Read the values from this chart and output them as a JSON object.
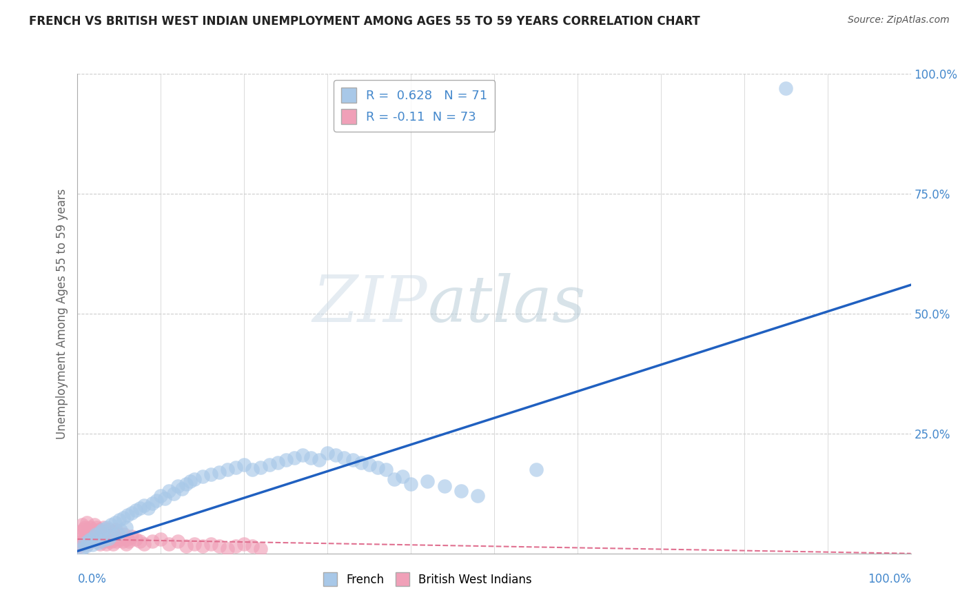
{
  "title": "FRENCH VS BRITISH WEST INDIAN UNEMPLOYMENT AMONG AGES 55 TO 59 YEARS CORRELATION CHART",
  "source": "Source: ZipAtlas.com",
  "ylabel": "Unemployment Among Ages 55 to 59 years",
  "xlim": [
    0,
    1.0
  ],
  "ylim": [
    0,
    1.0
  ],
  "yticks": [
    0.0,
    0.25,
    0.5,
    0.75,
    1.0
  ],
  "ytick_labels": [
    "",
    "25.0%",
    "50.0%",
    "75.0%",
    "100.0%"
  ],
  "french_R": 0.628,
  "french_N": 71,
  "british_R": -0.11,
  "british_N": 73,
  "french_color": "#a8c8e8",
  "british_color": "#f0a0b8",
  "french_line_color": "#2060c0",
  "british_line_color": "#e07090",
  "tick_color": "#4488cc",
  "grid_color": "#cccccc",
  "french_line_slope": 0.555,
  "french_line_intercept": 0.005,
  "british_line_slope": -0.03,
  "british_line_intercept": 0.03,
  "french_points_x": [
    0.005,
    0.008,
    0.01,
    0.012,
    0.015,
    0.018,
    0.02,
    0.022,
    0.025,
    0.028,
    0.03,
    0.032,
    0.035,
    0.038,
    0.04,
    0.042,
    0.045,
    0.048,
    0.05,
    0.052,
    0.055,
    0.058,
    0.06,
    0.065,
    0.07,
    0.075,
    0.08,
    0.085,
    0.09,
    0.095,
    0.1,
    0.105,
    0.11,
    0.115,
    0.12,
    0.125,
    0.13,
    0.135,
    0.14,
    0.15,
    0.16,
    0.17,
    0.18,
    0.19,
    0.2,
    0.21,
    0.22,
    0.23,
    0.24,
    0.25,
    0.26,
    0.27,
    0.28,
    0.29,
    0.3,
    0.31,
    0.32,
    0.33,
    0.34,
    0.35,
    0.36,
    0.37,
    0.38,
    0.39,
    0.4,
    0.42,
    0.44,
    0.46,
    0.48,
    0.55,
    0.85
  ],
  "french_points_y": [
    0.01,
    0.02,
    0.015,
    0.025,
    0.03,
    0.018,
    0.035,
    0.04,
    0.022,
    0.045,
    0.05,
    0.028,
    0.055,
    0.032,
    0.06,
    0.038,
    0.065,
    0.042,
    0.07,
    0.048,
    0.075,
    0.055,
    0.08,
    0.085,
    0.09,
    0.095,
    0.1,
    0.095,
    0.105,
    0.11,
    0.12,
    0.115,
    0.13,
    0.125,
    0.14,
    0.135,
    0.145,
    0.15,
    0.155,
    0.16,
    0.165,
    0.17,
    0.175,
    0.18,
    0.185,
    0.175,
    0.18,
    0.185,
    0.19,
    0.195,
    0.2,
    0.205,
    0.2,
    0.195,
    0.21,
    0.205,
    0.2,
    0.195,
    0.19,
    0.185,
    0.18,
    0.175,
    0.155,
    0.16,
    0.145,
    0.15,
    0.14,
    0.13,
    0.12,
    0.175,
    0.97
  ],
  "british_points_x": [
    0.001,
    0.002,
    0.003,
    0.004,
    0.005,
    0.006,
    0.007,
    0.008,
    0.009,
    0.01,
    0.011,
    0.012,
    0.013,
    0.014,
    0.015,
    0.016,
    0.017,
    0.018,
    0.019,
    0.02,
    0.021,
    0.022,
    0.023,
    0.024,
    0.025,
    0.026,
    0.027,
    0.028,
    0.029,
    0.03,
    0.031,
    0.032,
    0.033,
    0.034,
    0.035,
    0.036,
    0.037,
    0.038,
    0.039,
    0.04,
    0.041,
    0.042,
    0.043,
    0.044,
    0.045,
    0.046,
    0.047,
    0.048,
    0.05,
    0.052,
    0.054,
    0.056,
    0.058,
    0.06,
    0.062,
    0.065,
    0.07,
    0.075,
    0.08,
    0.09,
    0.1,
    0.11,
    0.12,
    0.13,
    0.14,
    0.15,
    0.16,
    0.17,
    0.18,
    0.19,
    0.2,
    0.21,
    0.22
  ],
  "british_points_y": [
    0.02,
    0.035,
    0.015,
    0.045,
    0.06,
    0.025,
    0.05,
    0.03,
    0.055,
    0.04,
    0.065,
    0.02,
    0.045,
    0.03,
    0.055,
    0.025,
    0.04,
    0.05,
    0.035,
    0.06,
    0.045,
    0.025,
    0.055,
    0.03,
    0.04,
    0.05,
    0.02,
    0.035,
    0.045,
    0.025,
    0.055,
    0.03,
    0.04,
    0.02,
    0.045,
    0.025,
    0.035,
    0.05,
    0.03,
    0.04,
    0.025,
    0.045,
    0.02,
    0.035,
    0.03,
    0.05,
    0.025,
    0.04,
    0.035,
    0.03,
    0.025,
    0.04,
    0.02,
    0.03,
    0.025,
    0.035,
    0.03,
    0.025,
    0.02,
    0.025,
    0.03,
    0.02,
    0.025,
    0.015,
    0.02,
    0.015,
    0.02,
    0.015,
    0.01,
    0.015,
    0.02,
    0.015,
    0.01
  ]
}
